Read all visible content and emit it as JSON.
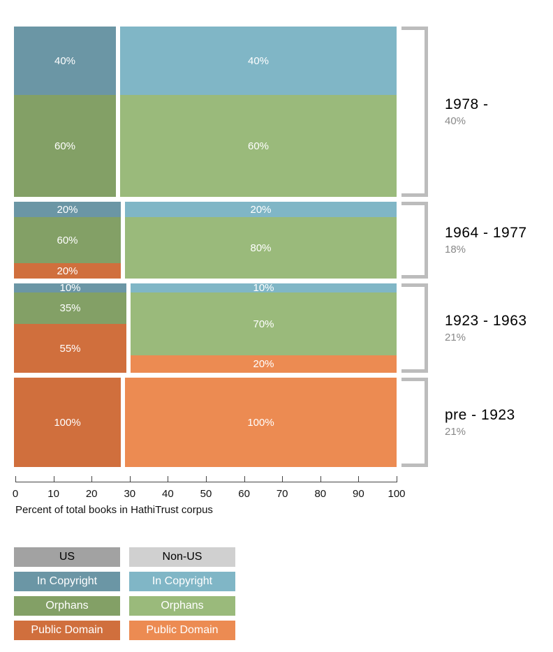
{
  "chart_data": {
    "type": "mosaic",
    "xlabel": "Percent of total books in HathiTrust corpus",
    "x_ticks": [
      "0",
      "10",
      "20",
      "30",
      "40",
      "50",
      "60",
      "70",
      "80",
      "90",
      "100"
    ],
    "x_range": [
      0,
      100
    ],
    "columns": [
      "US",
      "Non-US"
    ],
    "categories": [
      "In Copyright",
      "Orphans",
      "Public Domain"
    ],
    "rows": [
      {
        "era": "1978 -",
        "row_share_pct": 40,
        "row_share_label": "40%",
        "us_width_pct": 26.7,
        "us_segments": [
          {
            "category": "In Copyright",
            "pct": 40,
            "label": "40%"
          },
          {
            "category": "Orphans",
            "pct": 60,
            "label": "60%"
          }
        ],
        "nonus_segments": [
          {
            "category": "In Copyright",
            "pct": 40,
            "label": "40%"
          },
          {
            "category": "Orphans",
            "pct": 60,
            "label": "60%"
          }
        ]
      },
      {
        "era": "1964 - 1977",
        "row_share_pct": 18,
        "row_share_label": "18%",
        "us_width_pct": 28,
        "us_segments": [
          {
            "category": "In Copyright",
            "pct": 20,
            "label": "20%"
          },
          {
            "category": "Orphans",
            "pct": 60,
            "label": "60%"
          },
          {
            "category": "Public Domain",
            "pct": 20,
            "label": "20%"
          }
        ],
        "nonus_segments": [
          {
            "category": "In Copyright",
            "pct": 20,
            "label": "20%"
          },
          {
            "category": "Orphans",
            "pct": 80,
            "label": "80%"
          }
        ]
      },
      {
        "era": "1923 - 1963",
        "row_share_pct": 21,
        "row_share_label": "21%",
        "us_width_pct": 29.5,
        "us_segments": [
          {
            "category": "In Copyright",
            "pct": 10,
            "label": "10%"
          },
          {
            "category": "Orphans",
            "pct": 35,
            "label": "35%"
          },
          {
            "category": "Public Domain",
            "pct": 55,
            "label": "55%"
          }
        ],
        "nonus_segments": [
          {
            "category": "In Copyright",
            "pct": 10,
            "label": "10%"
          },
          {
            "category": "Orphans",
            "pct": 70,
            "label": "70%"
          },
          {
            "category": "Public Domain",
            "pct": 20,
            "label": "20%"
          }
        ]
      },
      {
        "era": "pre - 1923",
        "row_share_pct": 21,
        "row_share_label": "21%",
        "us_width_pct": 28,
        "us_segments": [
          {
            "category": "Public Domain",
            "pct": 100,
            "label": "100%"
          }
        ],
        "nonus_segments": [
          {
            "category": "Public Domain",
            "pct": 100,
            "label": "100%"
          }
        ]
      }
    ]
  },
  "colors": {
    "us": {
      "header": "#a2a2a2",
      "In Copyright": "#6b96a5",
      "Orphans": "#83a066",
      "Public Domain": "#d06f3d"
    },
    "nonus": {
      "header": "#d0d0d0",
      "In Copyright": "#80b6c6",
      "Orphans": "#9aba7b",
      "Public Domain": "#ec8b52"
    },
    "bracket": "#bcbcbc",
    "era_share_text": "#888888"
  },
  "legend": {
    "columns": [
      {
        "key": "us",
        "header": "US",
        "items": [
          "In Copyright",
          "Orphans",
          "Public Domain"
        ]
      },
      {
        "key": "nonus",
        "header": "Non-US",
        "items": [
          "In Copyright",
          "Orphans",
          "Public Domain"
        ]
      }
    ]
  }
}
